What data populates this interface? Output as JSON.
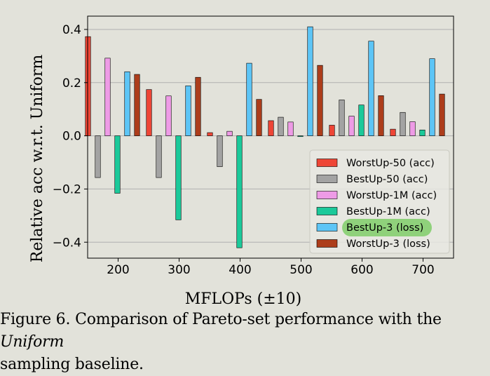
{
  "caption": {
    "prefix": "Figure 6. Comparison of Pareto-set performance with the ",
    "emphasis": "Uniform",
    "suffix": "sampling baseline."
  },
  "chart_data": {
    "type": "bar",
    "xlabel": "MFLOPs (±10)",
    "ylabel": "Relative acc w.r.t. Uniform",
    "categories": [
      "200",
      "300",
      "400",
      "500",
      "600",
      "700"
    ],
    "ylim": [
      -0.46,
      0.45
    ],
    "yticks": [
      0.4,
      0.2,
      0.0,
      -0.2,
      -0.4
    ],
    "ytick_labels": [
      "0.4",
      "0.2",
      "0.0",
      "−0.2",
      "−0.4"
    ],
    "grid": "horizontal",
    "legend_position": "lower-right",
    "series": [
      {
        "name": "WorstUp-50 (acc)",
        "color": "#ee4636",
        "values": [
          0.373,
          0.174,
          0.012,
          0.057,
          0.04,
          0.025
        ]
      },
      {
        "name": "BestUp-50 (acc)",
        "color": "#a3a3a3",
        "values": [
          -0.157,
          -0.157,
          -0.116,
          0.07,
          0.135,
          0.088
        ]
      },
      {
        "name": "WorstUp-1M (acc)",
        "color": "#ee9be6",
        "values": [
          0.292,
          0.15,
          0.017,
          0.052,
          0.074,
          0.053
        ]
      },
      {
        "name": "BestUp-1M (acc)",
        "color": "#1bc99a",
        "values": [
          -0.216,
          -0.316,
          -0.421,
          -0.003,
          0.116,
          0.022
        ]
      },
      {
        "name": "BestUp-3 (loss)",
        "color": "#5dc5f6",
        "values": [
          0.241,
          0.188,
          0.273,
          0.41,
          0.356,
          0.29
        ]
      },
      {
        "name": "WorstUp-3 (loss)",
        "color": "#ad3d1b",
        "values": [
          0.231,
          0.22,
          0.137,
          0.265,
          0.151,
          0.157
        ]
      }
    ],
    "legend_highlight": "BestUp-3 (loss)",
    "highlight_color": "#8fd17b"
  }
}
